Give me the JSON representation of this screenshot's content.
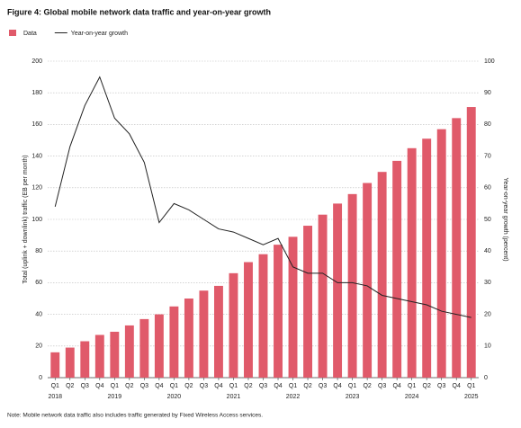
{
  "chart_data": {
    "type": "bar_line",
    "title": "Figure 4: Global mobile network data traffic and year-on-year growth",
    "ylabel": "Total (uplink + downlink) traffic (EB per month)",
    "y2label": "Year-on-year growth (percent)",
    "note": "Note: Mobile network data traffic also includes traffic generated by Fixed Wireless Access services.",
    "categories": [
      "Q1",
      "Q2",
      "Q3",
      "Q4",
      "Q1",
      "Q2",
      "Q3",
      "Q4",
      "Q1",
      "Q2",
      "Q3",
      "Q4",
      "Q1",
      "Q2",
      "Q3",
      "Q4",
      "Q1",
      "Q2",
      "Q3",
      "Q4",
      "Q1",
      "Q2",
      "Q3",
      "Q4",
      "Q1",
      "Q2",
      "Q3",
      "Q4",
      "Q1"
    ],
    "category_groups": [
      "2018",
      "2019",
      "2020",
      "2021",
      "2022",
      "2023",
      "2024",
      "2025"
    ],
    "series": [
      {
        "name": "Data",
        "color": "#e05a6a",
        "type": "bar",
        "values": [
          16,
          19,
          23,
          27,
          29,
          33,
          37,
          40,
          45,
          50,
          55,
          58,
          66,
          73,
          78,
          84,
          89,
          96,
          103,
          110,
          116,
          123,
          130,
          137,
          145,
          151,
          157,
          164,
          171
        ]
      },
      {
        "name": "Year-on-year growth",
        "color": "#222222",
        "type": "line",
        "axis": "y2",
        "values": [
          54,
          73,
          86,
          95,
          82,
          77,
          68,
          49,
          55,
          53,
          50,
          47,
          46,
          44,
          42,
          44,
          35,
          33,
          33,
          30,
          30,
          29,
          26,
          25,
          24,
          23,
          21,
          20,
          19
        ]
      }
    ],
    "ylim": [
      0,
      200
    ],
    "yticks": [
      0,
      20,
      40,
      60,
      80,
      100,
      120,
      140,
      160,
      180,
      200
    ],
    "y2lim": [
      0,
      100
    ],
    "y2ticks": [
      0,
      10,
      20,
      30,
      40,
      50,
      60,
      70,
      80,
      90,
      100
    ],
    "grid": true,
    "legend": "top-left"
  }
}
